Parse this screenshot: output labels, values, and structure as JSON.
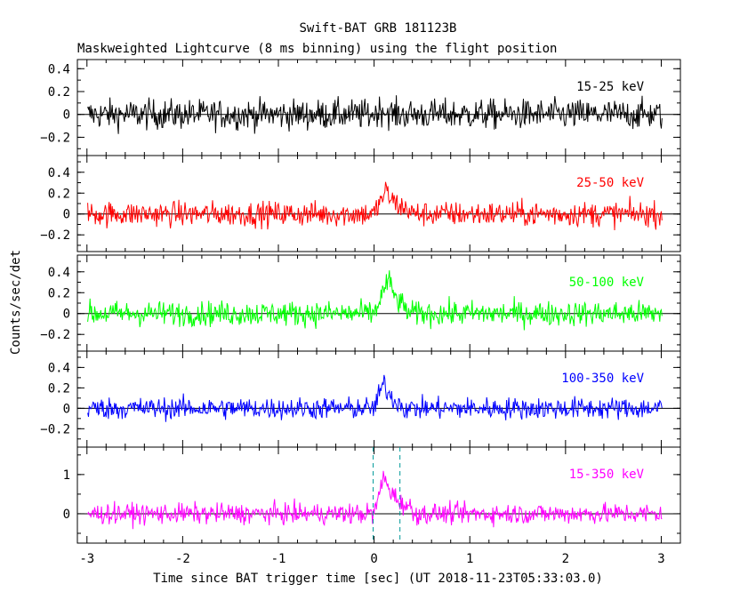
{
  "chart_data": {
    "type": "line",
    "title": "Swift-BAT GRB 181123B",
    "subtitle": "Maskweighted Lightcurve (8 ms binning) using the flight position",
    "xlabel": "Time since BAT trigger time [sec] (UT 2018-11-23T05:33:03.0)",
    "ylabel": "Counts/sec/det",
    "xlim": [
      -3.1,
      3.2
    ],
    "x_ticks": [
      "-3",
      "-2",
      "-1",
      "0",
      "1",
      "2",
      "3"
    ],
    "x_tick_values": [
      -3,
      -2,
      -1,
      0,
      1,
      2,
      3
    ],
    "x_range": [
      -2.992,
      3.008
    ],
    "bin_seconds": 0.008,
    "grid": false,
    "panels": [
      {
        "name": "15-25 keV",
        "color": "#000000",
        "ylim": [
          -0.36,
          0.48
        ],
        "y_tick_labels": [
          "0.4",
          "0.2",
          "0",
          "−0.2"
        ],
        "y_tick_values": [
          0.4,
          0.2,
          0,
          -0.2
        ],
        "noise_amplitude": 0.11,
        "burst": {
          "start": 0.0,
          "peak": 0.08,
          "end": 0.2,
          "height": 0.05
        },
        "t90_lines": []
      },
      {
        "name": "25-50 keV",
        "color": "#ff0000",
        "ylim": [
          -0.36,
          0.56
        ],
        "y_tick_labels": [
          "0.4",
          "0.2",
          "0",
          "−0.2"
        ],
        "y_tick_values": [
          0.4,
          0.2,
          0,
          -0.2
        ],
        "noise_amplitude": 0.1,
        "burst": {
          "start": 0.0,
          "peak": 0.12,
          "end": 0.4,
          "height": 0.22
        },
        "t90_lines": []
      },
      {
        "name": "50-100 keV",
        "color": "#00ff00",
        "ylim": [
          -0.36,
          0.56
        ],
        "y_tick_labels": [
          "0.4",
          "0.2",
          "0",
          "−0.2"
        ],
        "y_tick_values": [
          0.4,
          0.2,
          0,
          -0.2
        ],
        "noise_amplitude": 0.1,
        "burst": {
          "start": 0.0,
          "peak": 0.15,
          "end": 0.35,
          "height": 0.33
        },
        "t90_lines": []
      },
      {
        "name": "100-350 keV",
        "color": "#0000ff",
        "ylim": [
          -0.38,
          0.56
        ],
        "y_tick_labels": [
          "0.4",
          "0.2",
          "0",
          "−0.2"
        ],
        "y_tick_values": [
          0.4,
          0.2,
          0,
          -0.2
        ],
        "noise_amplitude": 0.09,
        "burst": {
          "start": 0.0,
          "peak": 0.1,
          "end": 0.3,
          "height": 0.25
        },
        "t90_lines": []
      },
      {
        "name": "15-350 keV",
        "color": "#ff00ff",
        "ylim": [
          -0.75,
          1.7
        ],
        "y_tick_labels": [
          "1",
          "0"
        ],
        "y_tick_values": [
          1,
          0
        ],
        "noise_amplitude": 0.22,
        "burst": {
          "start": 0.0,
          "peak": 0.1,
          "end": 0.4,
          "height": 0.95
        },
        "t90_lines": [
          -0.01,
          0.27
        ],
        "t90_color": "#009999"
      }
    ]
  }
}
